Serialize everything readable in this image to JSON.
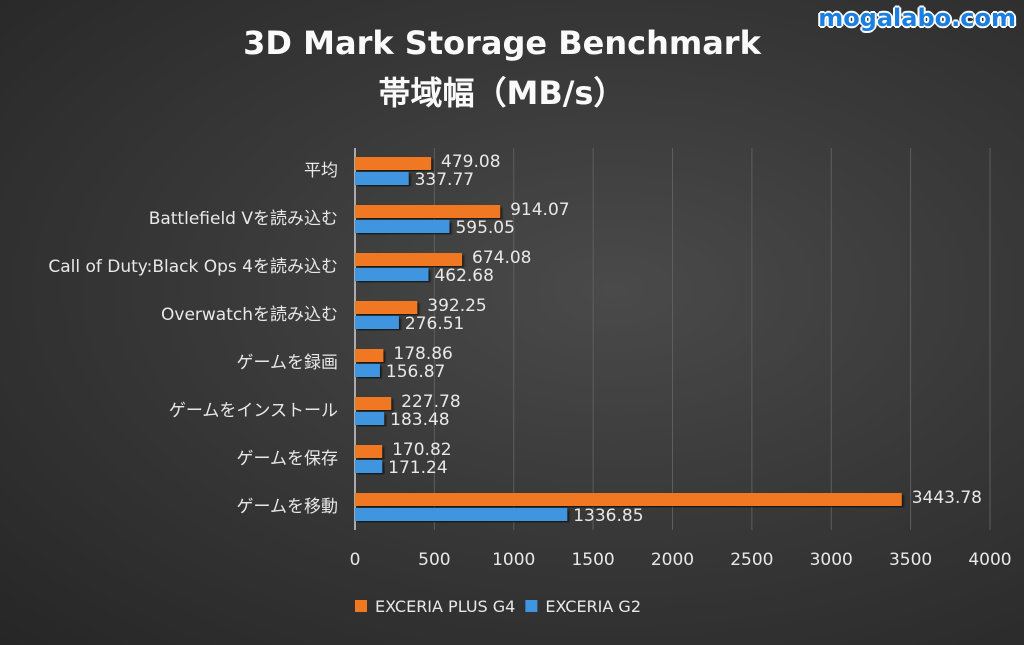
{
  "watermark": "mogalabo.com",
  "chart_data": {
    "type": "bar",
    "orientation": "horizontal",
    "title": "3D Mark Storage Benchmark",
    "subtitle": "帯域幅（MB/s）",
    "categories": [
      "平均",
      "Battlefield Vを読み込む",
      "Call of Duty:Black Ops 4を読み込む",
      "Overwatchを読み込む",
      "ゲームを録画",
      "ゲームをインストール",
      "ゲームを保存",
      "ゲームを移動"
    ],
    "series": [
      {
        "name": "EXCERIA PLUS G4",
        "color": "#f07820",
        "values": [
          479.08,
          914.07,
          674.08,
          392.25,
          178.86,
          227.78,
          170.82,
          3443.78
        ]
      },
      {
        "name": "EXCERIA G2",
        "color": "#3f95e0",
        "values": [
          337.77,
          595.05,
          462.68,
          276.51,
          156.87,
          183.48,
          171.24,
          1336.85
        ]
      }
    ],
    "xlim": [
      0,
      4000
    ],
    "xticks": [
      0,
      500,
      1000,
      1500,
      2000,
      2500,
      3000,
      3500,
      4000
    ],
    "grid": true,
    "legend": "bottom"
  }
}
